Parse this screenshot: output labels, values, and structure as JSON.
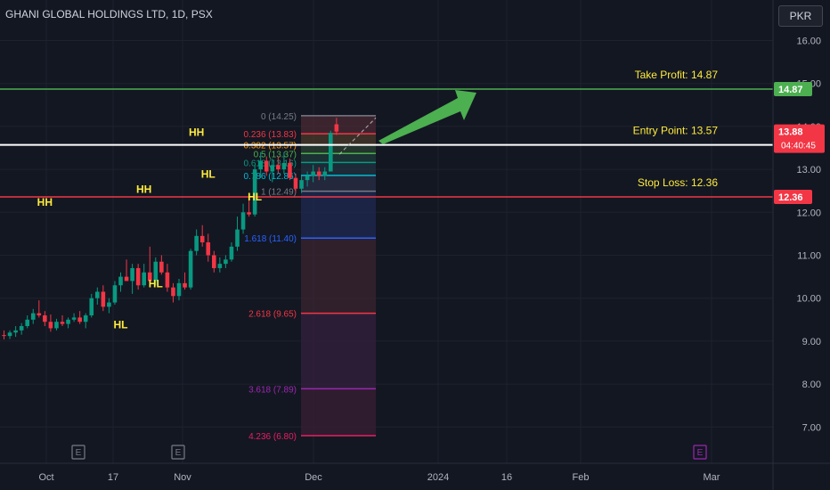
{
  "header": {
    "title": "GHANI GLOBAL HOLDINGS LTD, 1D, PSX",
    "currency": "PKR"
  },
  "colors": {
    "background": "#131722",
    "grid": "#1e222d",
    "axis_text": "#b2b5be",
    "up": "#089981",
    "down": "#f23645",
    "take_profit": "#4caf50",
    "entry": "#ffffff",
    "stop_loss": "#f23645",
    "annotation": "#ffeb3b",
    "arrow": "#4caf50"
  },
  "chart_data": {
    "type": "candlestick",
    "y_axis": {
      "ticks": [
        "16.00",
        "15.00",
        "14.00",
        "13.00",
        "12.00",
        "11.00",
        "10.00",
        "9.00",
        "8.00",
        "7.00"
      ],
      "ylim": [
        6.55,
        16.35
      ]
    },
    "x_axis": {
      "labels": [
        "Oct",
        "17",
        "Nov",
        "Dec",
        "2024",
        "16",
        "Feb",
        "Mar"
      ]
    },
    "series": [
      {
        "o": 9.14,
        "h": 9.25,
        "l": 9.04,
        "c": 9.12
      },
      {
        "o": 9.12,
        "h": 9.25,
        "l": 9.05,
        "c": 9.2
      },
      {
        "o": 9.2,
        "h": 9.35,
        "l": 9.1,
        "c": 9.25
      },
      {
        "o": 9.25,
        "h": 9.42,
        "l": 9.15,
        "c": 9.35
      },
      {
        "o": 9.35,
        "h": 9.6,
        "l": 9.3,
        "c": 9.5
      },
      {
        "o": 9.5,
        "h": 9.75,
        "l": 9.4,
        "c": 9.65
      },
      {
        "o": 9.65,
        "h": 9.95,
        "l": 9.55,
        "c": 9.6
      },
      {
        "o": 9.6,
        "h": 9.7,
        "l": 9.35,
        "c": 9.45
      },
      {
        "o": 9.45,
        "h": 9.62,
        "l": 9.22,
        "c": 9.3
      },
      {
        "o": 9.3,
        "h": 9.52,
        "l": 9.25,
        "c": 9.45
      },
      {
        "o": 9.45,
        "h": 9.6,
        "l": 9.35,
        "c": 9.4
      },
      {
        "o": 9.4,
        "h": 9.55,
        "l": 9.3,
        "c": 9.5
      },
      {
        "o": 9.5,
        "h": 9.65,
        "l": 9.45,
        "c": 9.55
      },
      {
        "o": 9.55,
        "h": 9.7,
        "l": 9.4,
        "c": 9.45
      },
      {
        "o": 9.45,
        "h": 9.65,
        "l": 9.3,
        "c": 9.6
      },
      {
        "o": 9.6,
        "h": 10.1,
        "l": 9.55,
        "c": 10.0
      },
      {
        "o": 10.0,
        "h": 10.25,
        "l": 9.85,
        "c": 10.15
      },
      {
        "o": 10.15,
        "h": 10.3,
        "l": 9.7,
        "c": 9.8
      },
      {
        "o": 9.8,
        "h": 10.0,
        "l": 9.65,
        "c": 9.9
      },
      {
        "o": 9.9,
        "h": 10.4,
        "l": 9.85,
        "c": 10.3
      },
      {
        "o": 10.3,
        "h": 10.6,
        "l": 10.15,
        "c": 10.5
      },
      {
        "o": 10.5,
        "h": 10.9,
        "l": 10.4,
        "c": 10.4
      },
      {
        "o": 10.4,
        "h": 10.8,
        "l": 10.1,
        "c": 10.7
      },
      {
        "o": 10.7,
        "h": 10.8,
        "l": 10.2,
        "c": 10.3
      },
      {
        "o": 10.3,
        "h": 10.8,
        "l": 10.25,
        "c": 10.6
      },
      {
        "o": 10.6,
        "h": 11.2,
        "l": 10.3,
        "c": 10.4
      },
      {
        "o": 10.4,
        "h": 10.95,
        "l": 10.3,
        "c": 10.85
      },
      {
        "o": 10.85,
        "h": 11.0,
        "l": 10.55,
        "c": 10.6
      },
      {
        "o": 10.6,
        "h": 10.8,
        "l": 10.15,
        "c": 10.25
      },
      {
        "o": 10.25,
        "h": 10.35,
        "l": 9.9,
        "c": 10.05
      },
      {
        "o": 10.05,
        "h": 10.45,
        "l": 9.95,
        "c": 10.35
      },
      {
        "o": 10.35,
        "h": 10.6,
        "l": 10.2,
        "c": 10.25
      },
      {
        "o": 10.25,
        "h": 11.15,
        "l": 10.2,
        "c": 11.1
      },
      {
        "o": 11.1,
        "h": 11.6,
        "l": 11.0,
        "c": 11.45
      },
      {
        "o": 11.45,
        "h": 11.7,
        "l": 11.2,
        "c": 11.3
      },
      {
        "o": 11.3,
        "h": 11.5,
        "l": 10.85,
        "c": 11.0
      },
      {
        "o": 11.0,
        "h": 11.1,
        "l": 10.6,
        "c": 10.7
      },
      {
        "o": 10.7,
        "h": 10.95,
        "l": 10.6,
        "c": 10.8
      },
      {
        "o": 10.8,
        "h": 11.0,
        "l": 10.7,
        "c": 10.9
      },
      {
        "o": 10.9,
        "h": 11.3,
        "l": 10.85,
        "c": 11.2
      },
      {
        "o": 11.2,
        "h": 11.9,
        "l": 11.1,
        "c": 11.6
      },
      {
        "o": 11.6,
        "h": 12.2,
        "l": 11.5,
        "c": 12.0
      },
      {
        "o": 12.0,
        "h": 12.3,
        "l": 11.9,
        "c": 11.95
      },
      {
        "o": 11.95,
        "h": 13.1,
        "l": 11.9,
        "c": 13.0
      },
      {
        "o": 13.0,
        "h": 13.4,
        "l": 12.8,
        "c": 13.2
      },
      {
        "o": 13.2,
        "h": 13.3,
        "l": 12.85,
        "c": 12.95
      },
      {
        "o": 12.95,
        "h": 13.25,
        "l": 12.7,
        "c": 13.1
      },
      {
        "o": 13.1,
        "h": 13.3,
        "l": 12.9,
        "c": 13.0
      },
      {
        "o": 13.0,
        "h": 13.4,
        "l": 12.9,
        "c": 13.15
      },
      {
        "o": 13.15,
        "h": 13.25,
        "l": 12.75,
        "c": 12.8
      },
      {
        "o": 12.8,
        "h": 12.9,
        "l": 12.45,
        "c": 12.55
      },
      {
        "o": 12.55,
        "h": 12.85,
        "l": 12.45,
        "c": 12.75
      },
      {
        "o": 12.75,
        "h": 12.95,
        "l": 12.6,
        "c": 12.85
      },
      {
        "o": 12.85,
        "h": 13.1,
        "l": 12.7,
        "c": 12.95
      },
      {
        "o": 12.95,
        "h": 13.05,
        "l": 12.75,
        "c": 12.85
      },
      {
        "o": 12.85,
        "h": 13.05,
        "l": 12.75,
        "c": 12.95
      },
      {
        "o": 12.95,
        "h": 13.9,
        "l": 12.95,
        "c": 13.85
      },
      {
        "o": 14.05,
        "h": 14.2,
        "l": 13.8,
        "c": 13.88
      }
    ],
    "levels": [
      {
        "name": "take-profit",
        "value": 14.87,
        "label": "Take Profit: 14.87",
        "tag": "14.87"
      },
      {
        "name": "entry",
        "value": 13.57,
        "label": "Entry Point: 13.57",
        "tag": "13.57"
      },
      {
        "name": "stop-loss",
        "value": 12.36,
        "label": "Stop Loss: 12.36",
        "tag": "12.36"
      }
    ],
    "current_price": {
      "value": 13.88,
      "label": "13.88",
      "countdown": "04:40:45"
    },
    "fibonacci": [
      {
        "ratio": "0",
        "value": 14.25,
        "label": "0 (14.25)",
        "color": "#787b86"
      },
      {
        "ratio": "0.236",
        "value": 13.83,
        "label": "0.236 (13.83)",
        "color": "#f23645"
      },
      {
        "ratio": "0.382",
        "value": 13.57,
        "label": "0.382 (13.57)",
        "color": "#ff9800"
      },
      {
        "ratio": "0.5",
        "value": 13.37,
        "label": "0.5 (13.37)",
        "color": "#4caf50"
      },
      {
        "ratio": "0.618",
        "value": 13.16,
        "label": "0.618 (13.16)",
        "color": "#089981"
      },
      {
        "ratio": "0.786",
        "value": 12.86,
        "label": "0.786 (12.86)",
        "color": "#00bcd4"
      },
      {
        "ratio": "1",
        "value": 12.49,
        "label": "1 (12.49)",
        "color": "#787b86"
      },
      {
        "ratio": "1.618",
        "value": 11.4,
        "label": "1.618 (11.40)",
        "color": "#2962ff"
      },
      {
        "ratio": "2.618",
        "value": 9.65,
        "label": "2.618 (9.65)",
        "color": "#f23645"
      },
      {
        "ratio": "3.618",
        "value": 7.89,
        "label": "3.618 (7.89)",
        "color": "#9c27b0"
      },
      {
        "ratio": "4.236",
        "value": 6.8,
        "label": "4.236 (6.80)",
        "color": "#e91e63"
      }
    ],
    "annotations": [
      {
        "text": "HH",
        "bar": 7,
        "value": 12.15
      },
      {
        "text": "HL",
        "bar": 20,
        "value": 9.3
      },
      {
        "text": "HH",
        "bar": 24,
        "value": 12.45
      },
      {
        "text": "HL",
        "bar": 26,
        "value": 10.25
      },
      {
        "text": "HH",
        "bar": 33,
        "value": 13.78
      },
      {
        "text": "HL",
        "bar": 35,
        "value": 12.8
      },
      {
        "text": "HL",
        "bar": 43,
        "value": 12.28
      }
    ],
    "events": [
      {
        "label": "E",
        "color": "#787b86"
      },
      {
        "label": "E",
        "color": "#787b86"
      },
      {
        "label": "E",
        "color": "#9c27b0"
      }
    ]
  }
}
